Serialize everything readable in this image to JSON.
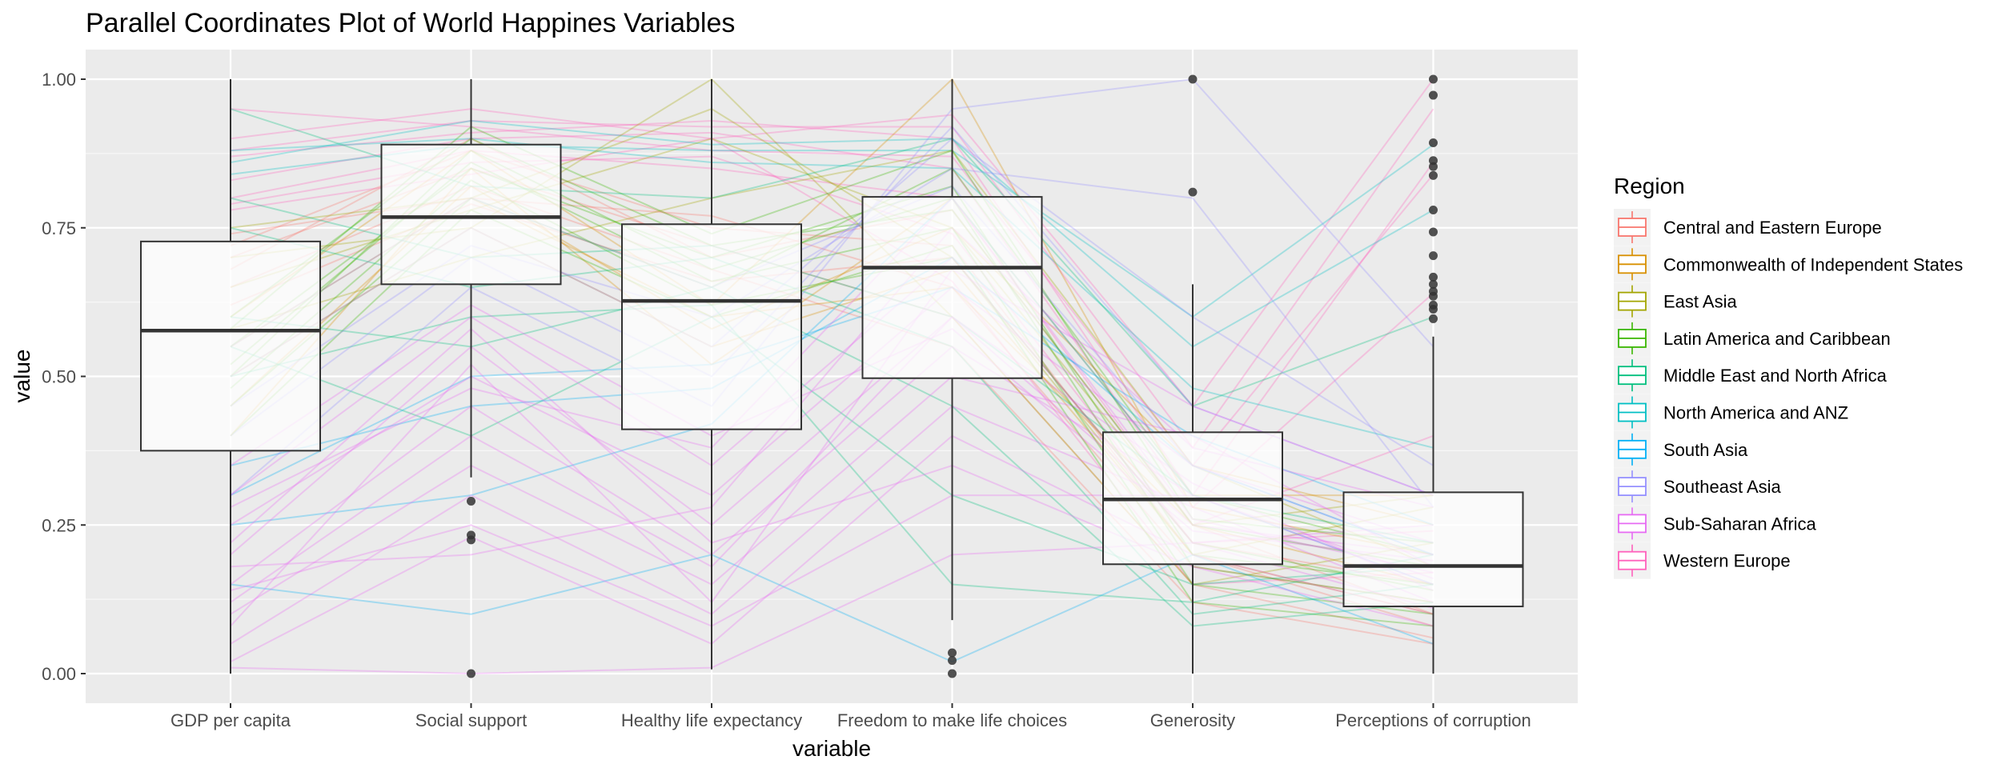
{
  "chart_data": {
    "type": "line",
    "title": "Parallel Coordinates Plot of World Happines Variables",
    "xlabel": "variable",
    "ylabel": "value",
    "ylim": [
      0,
      1
    ],
    "yticks": [
      "0.00",
      "0.25",
      "0.50",
      "0.75",
      "1.00"
    ],
    "categories": [
      "GDP per capita",
      "Social support",
      "Healthy life expectancy",
      "Freedom to make life choices",
      "Generosity",
      "Perceptions of corruption"
    ],
    "grid": true,
    "legend": {
      "title": "Region",
      "placement": "right",
      "entries": [
        {
          "name": "Central and Eastern Europe",
          "color": "#F8766D"
        },
        {
          "name": "Commonwealth of Independent States",
          "color": "#D89000"
        },
        {
          "name": "East Asia",
          "color": "#A3A500"
        },
        {
          "name": "Latin America and Caribbean",
          "color": "#39B600"
        },
        {
          "name": "Middle East and North Africa",
          "color": "#00BF7D"
        },
        {
          "name": "North America and ANZ",
          "color": "#00BFC4"
        },
        {
          "name": "South Asia",
          "color": "#00B0F6"
        },
        {
          "name": "Southeast Asia",
          "color": "#9590FF"
        },
        {
          "name": "Sub-Saharan Africa",
          "color": "#E76BF3"
        },
        {
          "name": "Western Europe",
          "color": "#FF62BC"
        }
      ]
    },
    "boxplots": [
      {
        "variable": "GDP per capita",
        "min": 0.0,
        "q1": 0.375,
        "median": 0.577,
        "q3": 0.727,
        "max": 1.0,
        "outliers": []
      },
      {
        "variable": "Social support",
        "min": 0.33,
        "q1": 0.655,
        "median": 0.768,
        "q3": 0.89,
        "max": 1.0,
        "outliers": [
          0.29,
          0.233,
          0.225,
          0.0
        ]
      },
      {
        "variable": "Healthy life expectancy",
        "min": 0.007,
        "q1": 0.411,
        "median": 0.627,
        "q3": 0.756,
        "max": 1.0,
        "outliers": []
      },
      {
        "variable": "Freedom to make life choices",
        "min": 0.09,
        "q1": 0.497,
        "median": 0.683,
        "q3": 0.802,
        "max": 1.0,
        "outliers": [
          0.035,
          0.022,
          0.0
        ]
      },
      {
        "variable": "Generosity",
        "min": 0.0,
        "q1": 0.184,
        "median": 0.293,
        "q3": 0.406,
        "max": 0.655,
        "outliers": [
          1.0,
          0.81
        ]
      },
      {
        "variable": "Perceptions of corruption",
        "min": 0.0,
        "q1": 0.113,
        "median": 0.181,
        "q3": 0.305,
        "max": 0.567,
        "outliers": [
          1.0,
          0.973,
          0.893,
          0.863,
          0.853,
          0.838,
          0.78,
          0.743,
          0.703,
          0.667,
          0.655,
          0.643,
          0.635,
          0.62,
          0.613,
          0.597
        ]
      }
    ],
    "series": [
      {
        "region": "Western Europe",
        "values": [
          0.88,
          0.93,
          0.92,
          0.92,
          0.38,
          0.95
        ]
      },
      {
        "region": "Western Europe",
        "values": [
          0.9,
          0.95,
          0.9,
          0.94,
          0.45,
          1.0
        ]
      },
      {
        "region": "Western Europe",
        "values": [
          0.87,
          0.91,
          0.93,
          0.9,
          0.3,
          0.86
        ]
      },
      {
        "region": "Western Europe",
        "values": [
          0.95,
          0.92,
          0.88,
          0.87,
          0.35,
          0.84
        ]
      },
      {
        "region": "Western Europe",
        "values": [
          0.83,
          0.9,
          0.91,
          0.85,
          0.28,
          0.64
        ]
      },
      {
        "region": "Western Europe",
        "values": [
          0.8,
          0.88,
          0.85,
          0.8,
          0.25,
          0.4
        ]
      },
      {
        "region": "Western Europe",
        "values": [
          0.78,
          0.84,
          0.9,
          0.66,
          0.15,
          0.17
        ]
      },
      {
        "region": "Western Europe",
        "values": [
          0.79,
          0.86,
          0.87,
          0.74,
          0.22,
          0.24
        ]
      },
      {
        "region": "North America and ANZ",
        "values": [
          0.86,
          0.93,
          0.89,
          0.9,
          0.55,
          0.78
        ]
      },
      {
        "region": "North America and ANZ",
        "values": [
          0.88,
          0.9,
          0.86,
          0.85,
          0.48,
          0.38
        ]
      },
      {
        "region": "North America and ANZ",
        "values": [
          0.84,
          0.89,
          0.88,
          0.88,
          0.6,
          0.89
        ]
      },
      {
        "region": "Central and Eastern Europe",
        "values": [
          0.72,
          0.88,
          0.75,
          0.72,
          0.2,
          0.08
        ]
      },
      {
        "region": "Central and Eastern Europe",
        "values": [
          0.7,
          0.85,
          0.72,
          0.6,
          0.15,
          0.06
        ]
      },
      {
        "region": "Central and Eastern Europe",
        "values": [
          0.68,
          0.9,
          0.7,
          0.78,
          0.25,
          0.1
        ]
      },
      {
        "region": "Central and Eastern Europe",
        "values": [
          0.65,
          0.82,
          0.68,
          0.55,
          0.12,
          0.05
        ]
      },
      {
        "region": "Central and Eastern Europe",
        "values": [
          0.74,
          0.8,
          0.77,
          0.65,
          0.18,
          0.12
        ]
      },
      {
        "region": "Central and Eastern Europe",
        "values": [
          0.62,
          0.79,
          0.66,
          0.7,
          0.22,
          0.15
        ]
      },
      {
        "region": "Commonwealth of Independent States",
        "values": [
          0.55,
          0.8,
          0.6,
          0.65,
          0.25,
          0.15
        ]
      },
      {
        "region": "Commonwealth of Independent States",
        "values": [
          0.45,
          0.82,
          0.58,
          0.75,
          0.35,
          0.25
        ]
      },
      {
        "region": "Commonwealth of Independent States",
        "values": [
          0.5,
          0.75,
          0.55,
          0.68,
          0.2,
          0.1
        ]
      },
      {
        "region": "Commonwealth of Independent States",
        "values": [
          0.4,
          0.85,
          0.52,
          0.8,
          0.3,
          0.3
        ]
      },
      {
        "region": "Commonwealth of Independent States",
        "values": [
          0.6,
          0.88,
          0.62,
          1.0,
          0.28,
          0.2
        ]
      },
      {
        "region": "East Asia",
        "values": [
          0.75,
          0.8,
          0.95,
          0.7,
          0.2,
          0.28
        ]
      },
      {
        "region": "East Asia",
        "values": [
          0.7,
          0.75,
          1.0,
          0.6,
          0.15,
          0.22
        ]
      },
      {
        "region": "East Asia",
        "values": [
          0.65,
          0.78,
          0.9,
          0.75,
          0.25,
          0.3
        ]
      },
      {
        "region": "East Asia",
        "values": [
          0.58,
          0.7,
          0.8,
          0.88,
          0.35,
          0.18
        ]
      },
      {
        "region": "Latin America and Caribbean",
        "values": [
          0.55,
          0.85,
          0.7,
          0.82,
          0.2,
          0.15
        ]
      },
      {
        "region": "Latin America and Caribbean",
        "values": [
          0.5,
          0.88,
          0.68,
          0.8,
          0.18,
          0.12
        ]
      },
      {
        "region": "Latin America and Caribbean",
        "values": [
          0.6,
          0.9,
          0.72,
          0.78,
          0.25,
          0.18
        ]
      },
      {
        "region": "Latin America and Caribbean",
        "values": [
          0.45,
          0.8,
          0.65,
          0.85,
          0.3,
          0.2
        ]
      },
      {
        "region": "Latin America and Caribbean",
        "values": [
          0.52,
          0.86,
          0.66,
          0.75,
          0.15,
          0.1
        ]
      },
      {
        "region": "Latin America and Caribbean",
        "values": [
          0.48,
          0.83,
          0.62,
          0.7,
          0.22,
          0.14
        ]
      },
      {
        "region": "Latin America and Caribbean",
        "values": [
          0.58,
          0.92,
          0.74,
          0.88,
          0.26,
          0.22
        ]
      },
      {
        "region": "Latin America and Caribbean",
        "values": [
          0.4,
          0.78,
          0.6,
          0.72,
          0.12,
          0.08
        ]
      },
      {
        "region": "Middle East and North Africa",
        "values": [
          0.8,
          0.7,
          0.72,
          0.6,
          0.3,
          0.22
        ]
      },
      {
        "region": "Middle East and North Africa",
        "values": [
          0.75,
          0.65,
          0.7,
          0.55,
          0.1,
          0.15
        ]
      },
      {
        "region": "Middle East and North Africa",
        "values": [
          0.95,
          0.82,
          0.8,
          0.9,
          0.45,
          0.6
        ]
      },
      {
        "region": "Middle East and North Africa",
        "values": [
          0.6,
          0.55,
          0.65,
          0.45,
          0.08,
          0.12
        ]
      },
      {
        "region": "Middle East and North Africa",
        "values": [
          0.55,
          0.4,
          0.6,
          0.3,
          0.15,
          0.18
        ]
      },
      {
        "region": "Middle East and North Africa",
        "values": [
          0.5,
          0.6,
          0.62,
          0.15,
          0.12,
          0.2
        ]
      },
      {
        "region": "South Asia",
        "values": [
          0.35,
          0.45,
          0.48,
          0.7,
          0.35,
          0.2
        ]
      },
      {
        "region": "South Asia",
        "values": [
          0.3,
          0.5,
          0.52,
          0.65,
          0.4,
          0.25
        ]
      },
      {
        "region": "South Asia",
        "values": [
          0.25,
          0.3,
          0.42,
          0.8,
          0.3,
          0.15
        ]
      },
      {
        "region": "South Asia",
        "values": [
          0.15,
          0.1,
          0.2,
          0.02,
          0.2,
          0.05
        ]
      },
      {
        "region": "Southeast Asia",
        "values": [
          0.5,
          0.75,
          0.55,
          0.9,
          0.6,
          0.35
        ]
      },
      {
        "region": "Southeast Asia",
        "values": [
          0.45,
          0.72,
          0.6,
          0.85,
          0.8,
          0.28
        ]
      },
      {
        "region": "Southeast Asia",
        "values": [
          0.4,
          0.7,
          0.5,
          0.92,
          0.45,
          0.3
        ]
      },
      {
        "region": "Southeast Asia",
        "values": [
          0.3,
          0.65,
          0.45,
          0.95,
          1.0,
          0.55
        ]
      },
      {
        "region": "Southeast Asia",
        "values": [
          0.55,
          0.8,
          0.65,
          0.82,
          0.35,
          0.2
        ]
      },
      {
        "region": "Sub-Saharan Africa",
        "values": [
          0.2,
          0.55,
          0.25,
          0.6,
          0.25,
          0.2
        ]
      },
      {
        "region": "Sub-Saharan Africa",
        "values": [
          0.15,
          0.45,
          0.2,
          0.55,
          0.3,
          0.15
        ]
      },
      {
        "region": "Sub-Saharan Africa",
        "values": [
          0.25,
          0.5,
          0.3,
          0.65,
          0.35,
          0.22
        ]
      },
      {
        "region": "Sub-Saharan Africa",
        "values": [
          0.1,
          0.35,
          0.15,
          0.5,
          0.4,
          0.18
        ]
      },
      {
        "region": "Sub-Saharan Africa",
        "values": [
          0.05,
          0.3,
          0.1,
          0.45,
          0.28,
          0.12
        ]
      },
      {
        "region": "Sub-Saharan Africa",
        "values": [
          0.3,
          0.6,
          0.35,
          0.7,
          0.22,
          0.25
        ]
      },
      {
        "region": "Sub-Saharan Africa",
        "values": [
          0.12,
          0.4,
          0.18,
          0.6,
          0.32,
          0.14
        ]
      },
      {
        "region": "Sub-Saharan Africa",
        "values": [
          0.02,
          0.23,
          0.05,
          0.4,
          0.2,
          0.1
        ]
      },
      {
        "region": "Sub-Saharan Africa",
        "values": [
          0.18,
          0.2,
          0.28,
          0.75,
          0.38,
          0.28
        ]
      },
      {
        "region": "Sub-Saharan Africa",
        "values": [
          0.22,
          0.58,
          0.22,
          0.35,
          0.18,
          0.08
        ]
      },
      {
        "region": "Sub-Saharan Africa",
        "values": [
          0.08,
          0.52,
          0.12,
          0.68,
          0.45,
          0.3
        ]
      },
      {
        "region": "Sub-Saharan Africa",
        "values": [
          0.28,
          0.48,
          0.38,
          0.8,
          0.26,
          0.17
        ]
      },
      {
        "region": "Sub-Saharan Africa",
        "values": [
          0.14,
          0.25,
          0.08,
          0.3,
          0.3,
          0.16
        ]
      },
      {
        "region": "Sub-Saharan Africa",
        "values": [
          0.35,
          0.62,
          0.4,
          0.58,
          0.24,
          0.19
        ]
      },
      {
        "region": "Sub-Saharan Africa",
        "values": [
          0.01,
          0.0,
          0.01,
          0.2,
          0.22,
          0.11
        ]
      }
    ]
  }
}
